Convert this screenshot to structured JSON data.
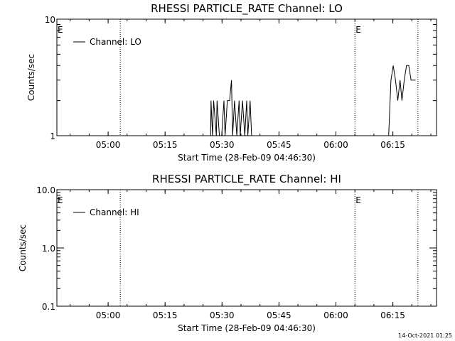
{
  "chart_data": [
    {
      "type": "line",
      "title": "RHESSI PARTICLE_RATE Channel: LO",
      "xlabel": "Start Time (28-Feb-09 04:46:30)",
      "ylabel": "Counts/sec",
      "yscale": "log",
      "ylim": [
        1,
        10
      ],
      "y_ticks": [
        "1",
        "10"
      ],
      "xlim_minutes": [
        0,
        100
      ],
      "x_ticks": [
        "05:00",
        "05:15",
        "05:30",
        "05:45",
        "06:00",
        "06:15"
      ],
      "legend": {
        "position": "top-left",
        "entries": [
          "Channel: LO"
        ]
      },
      "markers": [
        {
          "label": "E",
          "x_minutes": 0
        },
        {
          "label": "E",
          "x_minutes": 78.5
        }
      ],
      "vertical_dotted_lines_minutes": [
        16.7,
        78.5,
        95.1
      ],
      "series": [
        {
          "name": "Channel: LO",
          "x_minutes": [
            0,
            40.5,
            40.6,
            41,
            41.3,
            42,
            42.2,
            42.8,
            43.4,
            44,
            44.3,
            44.9,
            45.5,
            46,
            46.3,
            46.8,
            47.4,
            48,
            48.3,
            48.9,
            49.5,
            50,
            50.3,
            50.9,
            51.3,
            87.4,
            88,
            88.6,
            89.2,
            89.8,
            90.4,
            90.9,
            91.5,
            92.1,
            92.7,
            93.3,
            93.9,
            94.5
          ],
          "y": [
            1,
            1,
            2,
            1,
            2,
            1,
            2,
            1,
            1,
            2,
            1,
            2,
            2,
            3,
            1,
            2,
            1,
            2,
            1,
            2,
            1,
            2,
            1,
            2,
            1,
            1,
            3,
            4,
            3,
            2,
            3,
            2,
            3,
            4,
            4,
            3,
            3,
            3
          ]
        }
      ]
    },
    {
      "type": "line",
      "title": "RHESSI PARTICLE_RATE Channel: HI",
      "xlabel": "Start Time (28-Feb-09 04:46:30)",
      "ylabel": "Counts/sec",
      "yscale": "log",
      "ylim": [
        0.1,
        10
      ],
      "y_ticks": [
        "10.0",
        "1.0",
        "0.1"
      ],
      "xlim_minutes": [
        0,
        100
      ],
      "x_ticks": [
        "05:00",
        "05:15",
        "05:30",
        "05:45",
        "06:00",
        "06:15"
      ],
      "legend": {
        "position": "top-left",
        "entries": [
          "Channel: HI"
        ]
      },
      "markers": [
        {
          "label": "E",
          "x_minutes": 0
        },
        {
          "label": "E",
          "x_minutes": 78.5
        }
      ],
      "vertical_dotted_lines_minutes": [
        16.7,
        78.5,
        95.1
      ],
      "series": [
        {
          "name": "Channel: HI",
          "x_minutes": [],
          "y": []
        }
      ]
    }
  ],
  "footer": {
    "timestamp": "14-Oct-2021 01:25"
  }
}
